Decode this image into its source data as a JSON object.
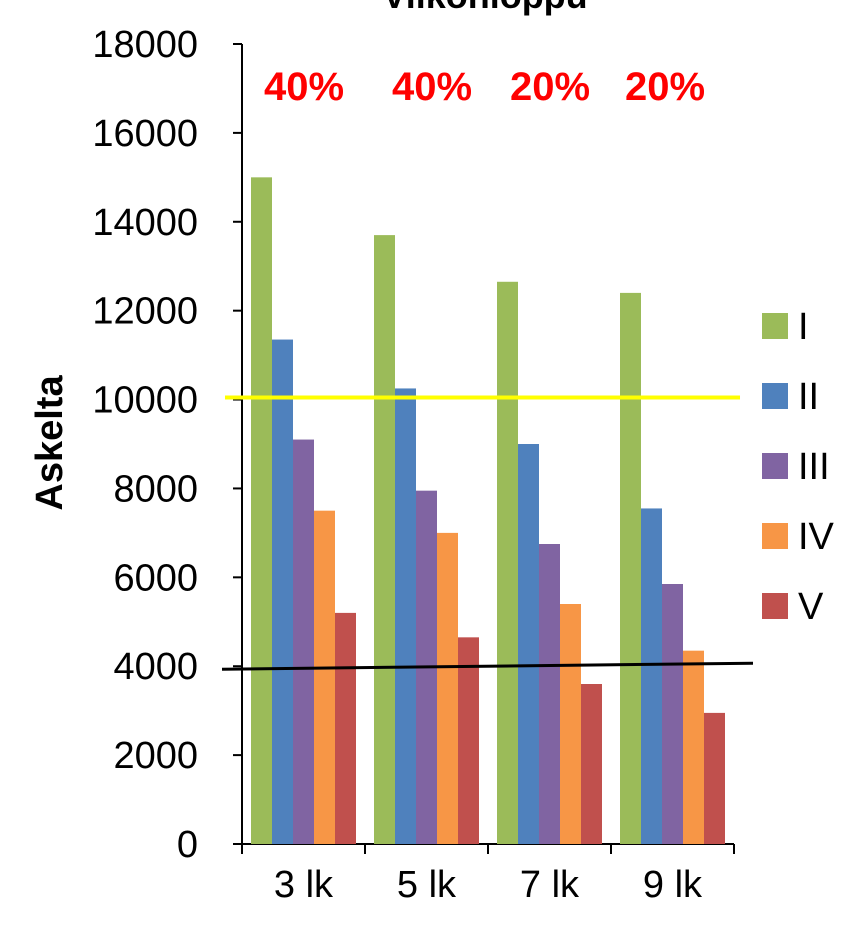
{
  "chart_data": {
    "type": "bar",
    "title": "Viikonloppu",
    "ylabel": "Askelta",
    "xlabel": "",
    "ylim": [
      0,
      18000
    ],
    "yticks": [
      0,
      2000,
      4000,
      6000,
      8000,
      10000,
      12000,
      14000,
      16000,
      18000
    ],
    "categories": [
      "3 lk",
      "5 lk",
      "7 lk",
      "9 lk"
    ],
    "series": [
      {
        "name": "I",
        "color": "#9BBB59",
        "values": [
          15000,
          13700,
          12650,
          12400
        ]
      },
      {
        "name": "II",
        "color": "#4F81BD",
        "values": [
          11350,
          10250,
          9000,
          7550
        ]
      },
      {
        "name": "III",
        "color": "#8064A2",
        "values": [
          9100,
          7950,
          6750,
          5850
        ]
      },
      {
        "name": "IV",
        "color": "#F79646",
        "values": [
          7500,
          7000,
          5400,
          4350
        ]
      },
      {
        "name": "V",
        "color": "#C0504D",
        "values": [
          5200,
          4650,
          3600,
          2950
        ]
      }
    ],
    "reference_lines": [
      {
        "value": 10000,
        "color": "#FFFF00"
      },
      {
        "value": 4000,
        "color": "#000000"
      }
    ],
    "annotations": [
      "40%",
      "40%",
      "20%",
      "20%"
    ],
    "annotation_color": "#FF0000",
    "legend_position": "right",
    "grid": false
  }
}
